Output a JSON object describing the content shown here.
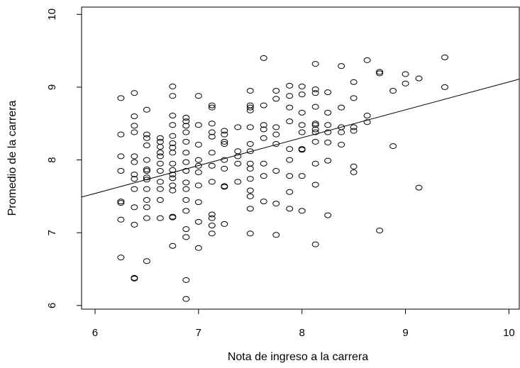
{
  "chart_data": {
    "type": "scatter",
    "xlabel": "Nota de ingreso a la carrera",
    "ylabel": "Promedio de la carrera",
    "xlim": [
      5.87,
      10.1
    ],
    "ylim": [
      5.95,
      10.1
    ],
    "xticks": [
      6,
      7,
      8,
      9,
      10
    ],
    "xtick_labels": [
      "6",
      "7",
      "8",
      "9",
      "10"
    ],
    "yticks": [
      6,
      7,
      8,
      9,
      10
    ],
    "ytick_labels": [
      "6",
      "7",
      "8",
      "9",
      "10"
    ],
    "grid": false,
    "marker": "open-circle",
    "colors": {
      "points": "#000000",
      "line": "#000000",
      "background": "#ffffff"
    },
    "regression_line": {
      "x": [
        5.87,
        10.1
      ],
      "y": [
        7.49,
        9.11
      ]
    },
    "points": [
      [
        6.25,
        8.85
      ],
      [
        6.25,
        8.35
      ],
      [
        6.25,
        8.05
      ],
      [
        6.25,
        7.85
      ],
      [
        6.25,
        7.43
      ],
      [
        6.25,
        7.41
      ],
      [
        6.25,
        7.18
      ],
      [
        6.25,
        6.66
      ],
      [
        6.38,
        8.92
      ],
      [
        6.38,
        8.6
      ],
      [
        6.38,
        8.47
      ],
      [
        6.38,
        8.38
      ],
      [
        6.38,
        8.05
      ],
      [
        6.38,
        7.97
      ],
      [
        6.38,
        7.8
      ],
      [
        6.38,
        7.74
      ],
      [
        6.38,
        7.6
      ],
      [
        6.38,
        7.35
      ],
      [
        6.38,
        7.11
      ],
      [
        6.38,
        6.38
      ],
      [
        6.38,
        6.37
      ],
      [
        6.5,
        8.69
      ],
      [
        6.5,
        8.35
      ],
      [
        6.5,
        8.3
      ],
      [
        6.5,
        8.2
      ],
      [
        6.5,
        8.0
      ],
      [
        6.5,
        7.87
      ],
      [
        6.5,
        7.85
      ],
      [
        6.5,
        7.76
      ],
      [
        6.5,
        7.73
      ],
      [
        6.5,
        7.6
      ],
      [
        6.5,
        7.45
      ],
      [
        6.5,
        7.35
      ],
      [
        6.5,
        7.2
      ],
      [
        6.5,
        6.61
      ],
      [
        6.63,
        8.3
      ],
      [
        6.63,
        8.25
      ],
      [
        6.63,
        8.18
      ],
      [
        6.63,
        8.1
      ],
      [
        6.63,
        8.05
      ],
      [
        6.63,
        7.95
      ],
      [
        6.63,
        7.85
      ],
      [
        6.63,
        7.7
      ],
      [
        6.63,
        7.6
      ],
      [
        6.63,
        7.45
      ],
      [
        6.63,
        7.2
      ],
      [
        6.75,
        9.01
      ],
      [
        6.75,
        8.88
      ],
      [
        6.75,
        8.61
      ],
      [
        6.75,
        8.48
      ],
      [
        6.75,
        8.33
      ],
      [
        6.75,
        8.23
      ],
      [
        6.75,
        8.17
      ],
      [
        6.75,
        8.1
      ],
      [
        6.75,
        7.95
      ],
      [
        6.75,
        7.86
      ],
      [
        6.75,
        7.8
      ],
      [
        6.75,
        7.75
      ],
      [
        6.75,
        7.65
      ],
      [
        6.75,
        7.58
      ],
      [
        6.75,
        7.22
      ],
      [
        6.75,
        7.21
      ],
      [
        6.75,
        6.82
      ],
      [
        6.88,
        8.58
      ],
      [
        6.88,
        8.53
      ],
      [
        6.88,
        8.47
      ],
      [
        6.88,
        8.38
      ],
      [
        6.88,
        8.25
      ],
      [
        6.88,
        8.1
      ],
      [
        6.88,
        7.97
      ],
      [
        6.88,
        7.85
      ],
      [
        6.88,
        7.69
      ],
      [
        6.88,
        7.6
      ],
      [
        6.88,
        7.45
      ],
      [
        6.88,
        7.3
      ],
      [
        6.88,
        7.05
      ],
      [
        6.88,
        6.94
      ],
      [
        6.88,
        6.35
      ],
      [
        6.88,
        6.09
      ],
      [
        7.0,
        8.88
      ],
      [
        7.0,
        8.48
      ],
      [
        7.0,
        8.21
      ],
      [
        7.0,
        8.0
      ],
      [
        7.0,
        7.92
      ],
      [
        7.0,
        7.83
      ],
      [
        7.0,
        7.65
      ],
      [
        7.0,
        7.42
      ],
      [
        7.0,
        7.15
      ],
      [
        7.0,
        6.79
      ],
      [
        7.13,
        8.75
      ],
      [
        7.13,
        8.72
      ],
      [
        7.13,
        8.5
      ],
      [
        7.13,
        8.38
      ],
      [
        7.13,
        8.32
      ],
      [
        7.13,
        8.1
      ],
      [
        7.13,
        7.92
      ],
      [
        7.13,
        7.7
      ],
      [
        7.13,
        7.25
      ],
      [
        7.13,
        7.2
      ],
      [
        7.13,
        7.1
      ],
      [
        7.13,
        6.99
      ],
      [
        7.25,
        8.4
      ],
      [
        7.25,
        8.35
      ],
      [
        7.25,
        8.25
      ],
      [
        7.25,
        8.22
      ],
      [
        7.25,
        8.0
      ],
      [
        7.25,
        7.88
      ],
      [
        7.25,
        7.64
      ],
      [
        7.25,
        7.63
      ],
      [
        7.25,
        7.12
      ],
      [
        7.38,
        8.45
      ],
      [
        7.38,
        8.12
      ],
      [
        7.38,
        8.05
      ],
      [
        7.38,
        7.95
      ],
      [
        7.38,
        7.7
      ],
      [
        7.5,
        8.95
      ],
      [
        7.5,
        8.75
      ],
      [
        7.5,
        8.72
      ],
      [
        7.5,
        8.68
      ],
      [
        7.5,
        8.45
      ],
      [
        7.5,
        8.22
      ],
      [
        7.5,
        8.12
      ],
      [
        7.5,
        7.95
      ],
      [
        7.5,
        7.88
      ],
      [
        7.5,
        7.74
      ],
      [
        7.5,
        7.58
      ],
      [
        7.5,
        7.5
      ],
      [
        7.5,
        7.33
      ],
      [
        7.5,
        6.99
      ],
      [
        7.63,
        9.4
      ],
      [
        7.63,
        8.75
      ],
      [
        7.63,
        8.48
      ],
      [
        7.63,
        8.42
      ],
      [
        7.63,
        8.3
      ],
      [
        7.63,
        7.95
      ],
      [
        7.63,
        7.78
      ],
      [
        7.63,
        7.43
      ],
      [
        7.75,
        8.95
      ],
      [
        7.75,
        8.84
      ],
      [
        7.75,
        8.45
      ],
      [
        7.75,
        8.35
      ],
      [
        7.75,
        8.22
      ],
      [
        7.75,
        7.85
      ],
      [
        7.75,
        7.4
      ],
      [
        7.75,
        6.97
      ],
      [
        7.88,
        9.02
      ],
      [
        7.88,
        8.88
      ],
      [
        7.88,
        8.72
      ],
      [
        7.88,
        8.53
      ],
      [
        7.88,
        8.15
      ],
      [
        7.88,
        8.0
      ],
      [
        7.88,
        7.78
      ],
      [
        7.88,
        7.56
      ],
      [
        7.88,
        7.33
      ],
      [
        8.0,
        9.01
      ],
      [
        8.0,
        8.9
      ],
      [
        8.0,
        8.65
      ],
      [
        8.0,
        8.48
      ],
      [
        8.0,
        8.38
      ],
      [
        8.0,
        8.15
      ],
      [
        8.0,
        8.14
      ],
      [
        8.0,
        7.78
      ],
      [
        8.0,
        7.3
      ],
      [
        8.13,
        9.32
      ],
      [
        8.13,
        8.97
      ],
      [
        8.13,
        8.92
      ],
      [
        8.13,
        8.73
      ],
      [
        8.13,
        8.5
      ],
      [
        8.13,
        8.48
      ],
      [
        8.13,
        8.42
      ],
      [
        8.13,
        8.38
      ],
      [
        8.13,
        8.25
      ],
      [
        8.13,
        7.95
      ],
      [
        8.13,
        7.66
      ],
      [
        8.13,
        6.84
      ],
      [
        8.25,
        8.93
      ],
      [
        8.25,
        8.65
      ],
      [
        8.25,
        8.48
      ],
      [
        8.25,
        8.38
      ],
      [
        8.25,
        8.24
      ],
      [
        8.25,
        7.99
      ],
      [
        8.25,
        7.24
      ],
      [
        8.38,
        9.29
      ],
      [
        8.38,
        8.72
      ],
      [
        8.38,
        8.45
      ],
      [
        8.38,
        8.38
      ],
      [
        8.38,
        8.21
      ],
      [
        8.5,
        9.07
      ],
      [
        8.5,
        8.85
      ],
      [
        8.5,
        8.45
      ],
      [
        8.5,
        8.4
      ],
      [
        8.5,
        7.91
      ],
      [
        8.5,
        7.83
      ],
      [
        8.63,
        9.37
      ],
      [
        8.63,
        8.61
      ],
      [
        8.63,
        8.52
      ],
      [
        8.75,
        9.21
      ],
      [
        8.75,
        9.19
      ],
      [
        8.75,
        7.03
      ],
      [
        8.88,
        8.95
      ],
      [
        8.88,
        8.19
      ],
      [
        9.0,
        9.18
      ],
      [
        9.0,
        9.05
      ],
      [
        9.13,
        9.12
      ],
      [
        9.13,
        7.62
      ],
      [
        9.38,
        9.41
      ],
      [
        9.38,
        9.0
      ]
    ]
  }
}
